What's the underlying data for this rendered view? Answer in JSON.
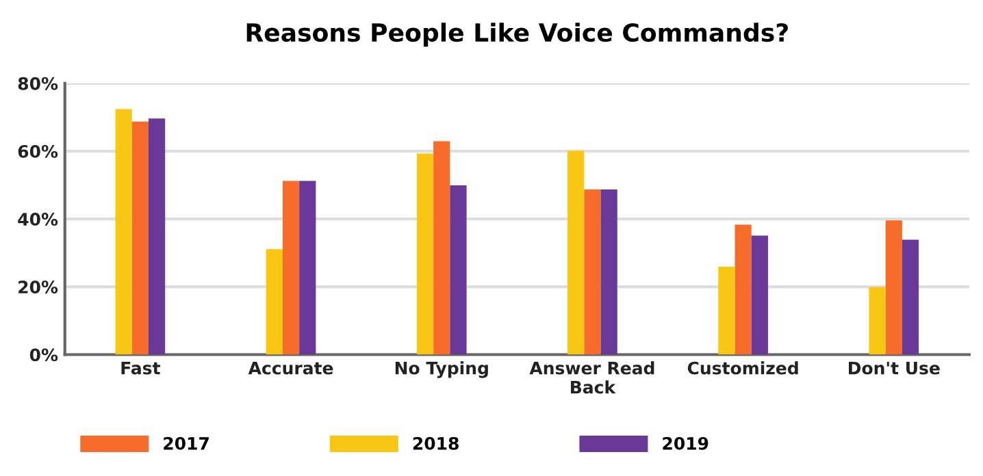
{
  "chart_data": {
    "type": "bar",
    "title": "Reasons People Like Voice Commands?",
    "categories": [
      "Fast",
      "Accurate",
      "No Typing",
      "Answer Read\nBack",
      "Customized",
      "Don't Use"
    ],
    "series": [
      {
        "name": "2017",
        "color": "#f76b2b",
        "values": [
          68.7,
          51.2,
          62.9,
          48.7,
          38.3,
          39.6
        ]
      },
      {
        "name": "2018",
        "color": "#f9c614",
        "values": [
          72.4,
          31.1,
          59.3,
          60.1,
          25.9,
          19.9
        ]
      },
      {
        "name": "2019",
        "color": "#6a3899",
        "values": [
          69.6,
          51.2,
          49.9,
          48.7,
          35.1,
          33.9
        ]
      }
    ],
    "ylim": [
      0,
      80
    ],
    "yticks": [
      {
        "value": 0,
        "label": "0%"
      },
      {
        "value": 20,
        "label": "20%"
      },
      {
        "value": 40,
        "label": "40%"
      },
      {
        "value": 60,
        "label": "60%"
      },
      {
        "value": 80,
        "label": "80%"
      }
    ],
    "grid": "y",
    "legend": "bottom"
  }
}
